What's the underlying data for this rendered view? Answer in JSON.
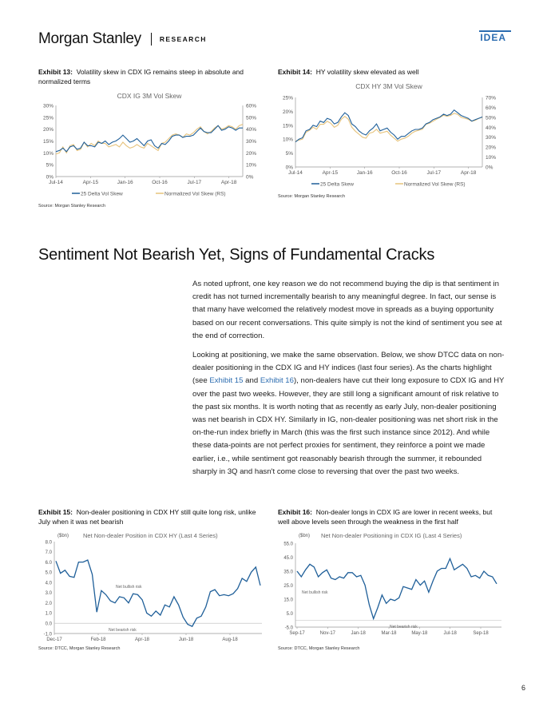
{
  "header": {
    "brand": "Morgan Stanley",
    "research": "RESEARCH",
    "tag": "IDEA"
  },
  "exhibit13": {
    "label": "Exhibit 13:",
    "title": "Volatility skew in CDX IG remains steep in absolute and normalized terms",
    "source": "Source: Morgan Stanley Research"
  },
  "exhibit14": {
    "label": "Exhibit 14:",
    "title": "HY volatility skew elevated as well",
    "source": "Source: Morgan Stanley Research"
  },
  "exhibit15": {
    "label": "Exhibit 15:",
    "title": "Non-dealer positioning in CDX HY still quite long risk, unlike July when it was net bearish",
    "source": "Source: DTCC, Morgan Stanley Research"
  },
  "exhibit16": {
    "label": "Exhibit 16:",
    "title": "Non-dealer longs in CDX IG are lower in recent weeks, but well above levels seen through the weakness in the first half",
    "source": "Source: DTCC, Morgan Stanley Research"
  },
  "section": {
    "title": "Sentiment Not Bearish Yet, Signs of Fundamental Cracks"
  },
  "body": {
    "p1": "As noted upfront, one key reason we do not recommend buying the dip is that sentiment in credit has not turned incrementally bearish to any meaningful degree. In fact, our sense is that many have welcomed the relatively modest move in spreads as a buying opportunity based on our recent conversations. This quite simply is not the kind of sentiment you see at the end of correction.",
    "p2_a": "Looking at positioning, we make the same observation. Below, we show DTCC data on non-dealer positioning in the CDX IG and HY indices (last four series). As the charts highlight (see ",
    "p2_link1": "Exhibit 15",
    "p2_and": " and ",
    "p2_link2": "Exhibit 16",
    "p2_b": "), non-dealers have cut their long exposure to CDX IG and HY over the past two weeks. However, they are still long a significant amount of risk relative to the past six months. It is worth noting that as recently as early July, non-dealer positioning was net bearish in CDX HY. Similarly in IG, non-dealer positioning was net short risk in the on-the-run index briefly in March (this was the first such instance since 2012). And while these data-points are not perfect proxies for sentiment, they reinforce a point we made earlier, i.e., while sentiment got reasonably bearish through the summer, it rebounded sharply in 3Q and hasn't come close to reversing that over the past two weeks."
  },
  "page_number": "6",
  "chart_data": [
    {
      "type": "line",
      "title": "CDX IG 3M Vol Skew",
      "x_tick_labels": [
        "Jul-14",
        "Apr-15",
        "Jan-16",
        "Oct-16",
        "Jul-17",
        "Apr-18"
      ],
      "y_left_ticks": [
        "0%",
        "5%",
        "10%",
        "15%",
        "20%",
        "25%",
        "30%"
      ],
      "y_right_ticks": [
        "0%",
        "10%",
        "20%",
        "30%",
        "40%",
        "50%",
        "60%"
      ],
      "ylim_left": [
        0,
        30
      ],
      "ylim_right": [
        0,
        60
      ],
      "grid": false,
      "legend": "bottom",
      "series": [
        {
          "name": "25 Delta Vol Skew",
          "axis": "left",
          "color": "#1f5f99",
          "values": [
            10.5,
            11,
            12,
            10.5,
            12.5,
            13,
            11.5,
            12,
            14.5,
            13,
            13,
            12.5,
            14.5,
            14,
            15,
            13.5,
            14.5,
            15,
            16,
            17.5,
            16,
            14.5,
            15,
            16,
            14.5,
            13,
            15,
            15.5,
            13,
            12,
            14,
            13.5,
            15,
            17,
            17.5,
            17.5,
            16.5,
            17,
            17,
            17.5,
            19,
            20.5,
            19,
            18.5,
            18.5,
            20,
            21.5,
            19.5,
            20,
            21,
            20.5,
            19.5,
            20.5,
            20.5
          ]
        },
        {
          "name": "Normalized Vol Skew (RS)",
          "axis": "right",
          "color": "#e6c27a",
          "values": [
            19,
            20,
            25,
            20,
            26,
            27,
            22,
            23,
            29,
            25,
            28,
            26,
            30,
            28,
            28,
            25,
            26,
            27,
            25,
            29,
            26,
            24,
            25,
            27,
            25,
            24,
            28,
            26,
            24,
            22,
            28,
            29,
            32,
            35,
            36,
            35,
            33,
            36,
            35,
            37,
            40,
            42,
            38,
            36,
            38,
            41,
            43,
            40,
            41,
            43,
            42,
            40,
            43,
            44
          ]
        }
      ]
    },
    {
      "type": "line",
      "title": "CDX HY 3M Vol Skew",
      "x_tick_labels": [
        "Jul-14",
        "Apr-15",
        "Jan-16",
        "Oct-16",
        "Jul-17",
        "Apr-18"
      ],
      "y_left_ticks": [
        "0%",
        "5%",
        "10%",
        "15%",
        "20%",
        "25%"
      ],
      "y_right_ticks": [
        "0%",
        "10%",
        "20%",
        "30%",
        "40%",
        "50%",
        "60%",
        "70%"
      ],
      "ylim_left": [
        0,
        25
      ],
      "ylim_right": [
        0,
        70
      ],
      "grid": false,
      "legend": "bottom",
      "series": [
        {
          "name": "25 Delta Skew",
          "axis": "left",
          "color": "#1f5f99",
          "values": [
            9,
            10,
            10.5,
            13,
            13.5,
            15,
            14.5,
            16.5,
            16,
            17.5,
            17,
            15.5,
            16,
            18,
            19.5,
            18.5,
            15.5,
            14.5,
            13,
            12,
            11.5,
            13,
            14,
            15.5,
            13,
            13.5,
            14,
            12.5,
            11.5,
            10,
            11,
            11,
            12,
            13,
            13.5,
            13.5,
            14,
            15.5,
            16,
            17,
            17.5,
            18,
            19,
            18.5,
            19,
            20.5,
            19.5,
            18.5,
            18,
            17.5,
            16.5,
            17,
            17.5,
            18
          ]
        },
        {
          "name": "Normalized Vol Skew (RS)",
          "axis": "right",
          "color": "#e6c27a",
          "values": [
            26,
            27,
            28,
            35,
            37,
            40,
            38,
            43,
            43,
            46,
            44,
            40,
            42,
            48,
            51,
            48,
            40,
            36,
            33,
            30,
            29,
            34,
            35,
            38,
            34,
            35,
            36,
            32,
            29,
            26,
            28,
            29,
            31,
            34,
            36,
            37,
            38,
            43,
            44,
            46,
            48,
            50,
            52,
            51,
            52,
            54,
            53,
            50,
            49,
            48,
            46,
            47,
            49,
            50
          ]
        }
      ]
    },
    {
      "type": "line",
      "title": "Net Non-dealer Position in CDX HY (Last 4 Series)",
      "y_unit": "($bn)",
      "x_tick_labels": [
        "Dec-17",
        "Feb-18",
        "Apr-18",
        "Jun-18",
        "Aug-18"
      ],
      "y_ticks": [
        "-1.0",
        "0.0",
        "1.0",
        "2.0",
        "3.0",
        "4.0",
        "5.0",
        "6.0",
        "7.0",
        "8.0"
      ],
      "ylim": [
        -1,
        8
      ],
      "annotations": [
        "Net bullish risk",
        "Net bearish risk"
      ],
      "series": [
        {
          "name": "",
          "color": "#1f5f99",
          "values": [
            6.1,
            4.9,
            5.2,
            4.6,
            4.5,
            6.0,
            6.0,
            6.2,
            4.8,
            1.1,
            3.2,
            2.8,
            2.2,
            2.0,
            2.6,
            2.5,
            2.0,
            2.9,
            2.8,
            2.3,
            1.0,
            0.7,
            1.2,
            0.8,
            1.8,
            1.6,
            2.6,
            1.8,
            0.6,
            -0.1,
            -0.3,
            0.5,
            0.7,
            1.6,
            3.1,
            3.3,
            2.7,
            2.8,
            2.7,
            2.9,
            3.4,
            4.4,
            4.1,
            5.0,
            5.5,
            3.7
          ]
        }
      ]
    },
    {
      "type": "line",
      "title": "Net Non-dealer Positioning in CDX IG (Last 4 Series)",
      "y_unit": "($bn)",
      "x_tick_labels": [
        "Sep-17",
        "Nov-17",
        "Jan-18",
        "Mar-18",
        "May-18",
        "Jul-18",
        "Sep-18"
      ],
      "y_ticks": [
        "-5.0",
        "5.0",
        "15.0",
        "25.0",
        "35.0",
        "45.0",
        "55.0"
      ],
      "ylim": [
        -5,
        55
      ],
      "annotations": [
        "Net bullish risk",
        "Net bearish risk"
      ],
      "series": [
        {
          "name": "",
          "color": "#1f5f99",
          "values": [
            35,
            31,
            36,
            40,
            38,
            31,
            34,
            36,
            30,
            29,
            31,
            30,
            34,
            34,
            31,
            32,
            25,
            11,
            1,
            9,
            18,
            12,
            15,
            14,
            16,
            24,
            23,
            22,
            29,
            25,
            28,
            20,
            28,
            35,
            37,
            37,
            44,
            36,
            38,
            40,
            37,
            31,
            32,
            30,
            35,
            32,
            31,
            26
          ]
        }
      ]
    }
  ]
}
